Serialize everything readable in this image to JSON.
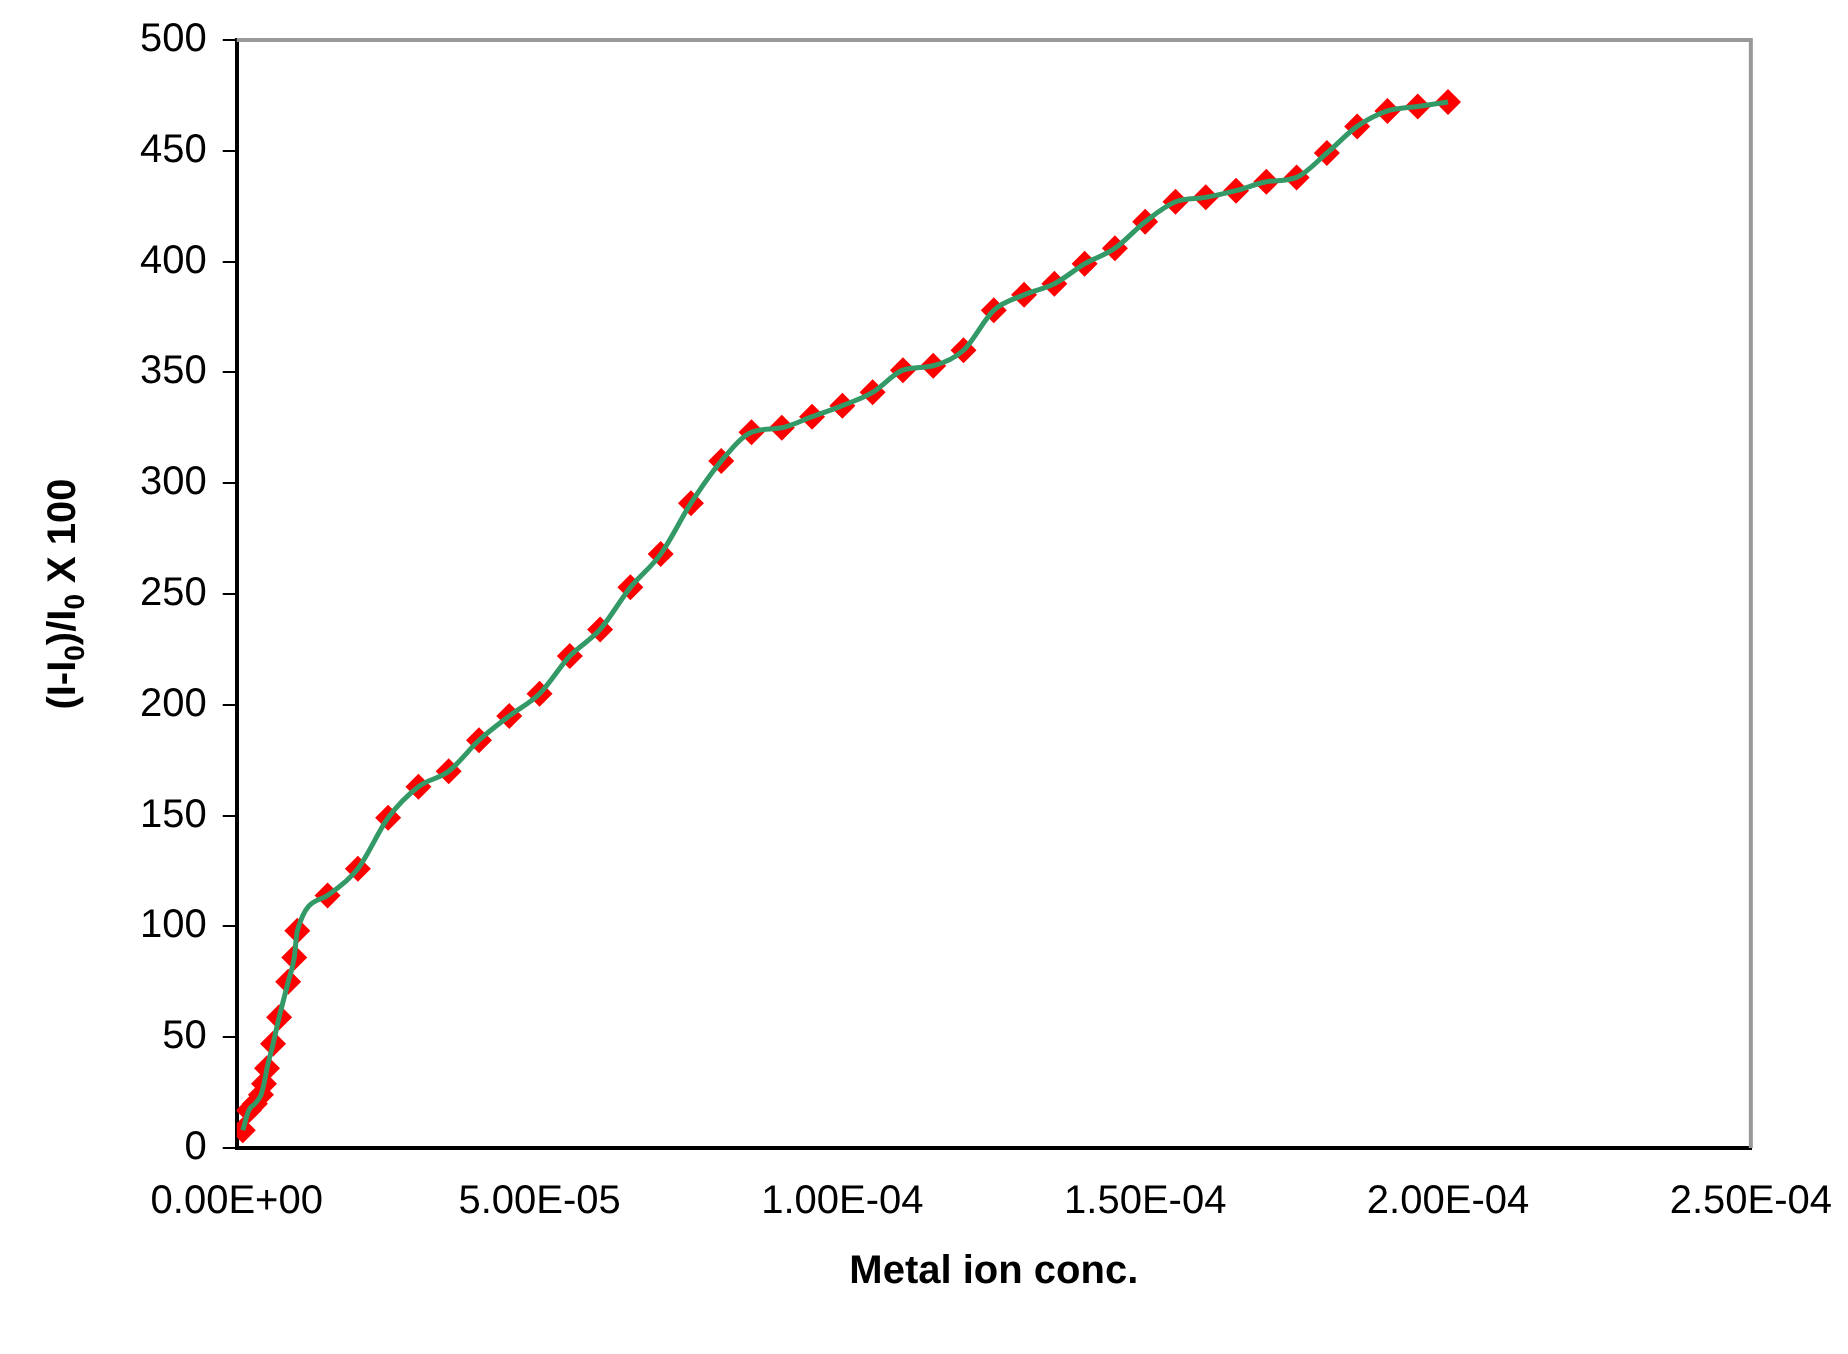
{
  "chart_data": {
    "type": "scatter",
    "xlabel": "Metal ion conc.",
    "ylabel": "(I-I$_{0}$)/I$_{0}$ X 100",
    "x": [
      1e-06,
      2e-06,
      3e-06,
      4e-06,
      4.5e-06,
      5e-06,
      6e-06,
      7e-06,
      8.5e-06,
      9.5e-06,
      1e-05,
      1.5e-05,
      2e-05,
      2.5e-05,
      3e-05,
      3.5e-05,
      4e-05,
      4.5e-05,
      5e-05,
      5.5e-05,
      6e-05,
      6.5e-05,
      7e-05,
      7.5e-05,
      8e-05,
      8.5e-05,
      9e-05,
      9.5e-05,
      0.0001,
      0.000105,
      0.00011,
      0.000115,
      0.00012,
      0.000125,
      0.00013,
      0.000135,
      0.00014,
      0.000145,
      0.00015,
      0.000155,
      0.00016,
      0.000165,
      0.00017,
      0.000175,
      0.00018,
      0.000185,
      0.00019,
      0.000195,
      0.0002
    ],
    "series": [
      {
        "type": "line",
        "color": "#339966",
        "marker": "none",
        "values": [
          8,
          17,
          20,
          24,
          29,
          36,
          47,
          59,
          75,
          86,
          98,
          114,
          126,
          149,
          163,
          170,
          184,
          195,
          205,
          222,
          234,
          253,
          268,
          291,
          310,
          323,
          325,
          330,
          335,
          341,
          351,
          353,
          360,
          378,
          385,
          390,
          399,
          406,
          418,
          427,
          429,
          432,
          436,
          438,
          449,
          461,
          468,
          470,
          472
        ]
      },
      {
        "color": "#ff0000",
        "marker": "diamond",
        "values": [
          8,
          17,
          20,
          24,
          29,
          36,
          47,
          59,
          75,
          86,
          98,
          114,
          126,
          149,
          163,
          170,
          184,
          195,
          205,
          222,
          234,
          253,
          268,
          291,
          310,
          323,
          325,
          330,
          335,
          341,
          351,
          353,
          360,
          378,
          385,
          390,
          399,
          406,
          418,
          427,
          429,
          432,
          436,
          438,
          449,
          461,
          468,
          470,
          472
        ]
      }
    ],
    "xlim": [
      0,
      0.00025
    ],
    "xticks": [
      {
        "value": 0,
        "label": "0.00E+00"
      },
      {
        "value": 5e-05,
        "label": "5.00E-05"
      },
      {
        "value": 0.0001,
        "label": "1.00E-04"
      },
      {
        "value": 0.00015,
        "label": "1.50E-04"
      },
      {
        "value": 0.0002,
        "label": "2.00E-04"
      },
      {
        "value": 0.00025,
        "label": "2.50E-04"
      }
    ],
    "ylim": [
      0,
      500
    ],
    "yticks": [
      0,
      50,
      100,
      150,
      200,
      250,
      300,
      350,
      400,
      450,
      500
    ],
    "grid": false,
    "legend": false
  }
}
